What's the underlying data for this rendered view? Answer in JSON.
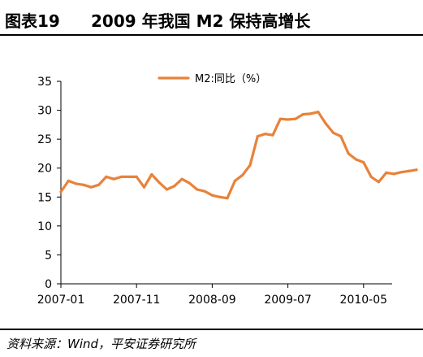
{
  "figure": {
    "label": "图表19",
    "title": "2009 年我国 M2 保持高增长",
    "source": "资料来源：Wind，平安证券研究所"
  },
  "chart_data": {
    "type": "line",
    "title": "",
    "xlabel": "",
    "ylabel": "",
    "ylim": [
      0,
      35
    ],
    "y_ticks": [
      0,
      5,
      10,
      15,
      20,
      25,
      30,
      35
    ],
    "grid": false,
    "legend_position": "top-center",
    "x": [
      "2007-01",
      "2007-02",
      "2007-03",
      "2007-04",
      "2007-05",
      "2007-06",
      "2007-07",
      "2007-08",
      "2007-09",
      "2007-10",
      "2007-11",
      "2007-12",
      "2008-01",
      "2008-02",
      "2008-03",
      "2008-04",
      "2008-05",
      "2008-06",
      "2008-07",
      "2008-08",
      "2008-09",
      "2008-10",
      "2008-11",
      "2008-12",
      "2009-01",
      "2009-02",
      "2009-03",
      "2009-04",
      "2009-05",
      "2009-06",
      "2009-07",
      "2009-08",
      "2009-09",
      "2009-10",
      "2009-11",
      "2009-12",
      "2010-01",
      "2010-02",
      "2010-03",
      "2010-04",
      "2010-05",
      "2010-06",
      "2010-07",
      "2010-08",
      "2010-09",
      "2010-10",
      "2010-11",
      "2010-12"
    ],
    "x_tick_labels": [
      "2007-01",
      "2007-11",
      "2008-09",
      "2009-07",
      "2010-05"
    ],
    "series": [
      {
        "name": "M2:同比（%）",
        "color": "#E8823A",
        "values": [
          15.9,
          17.8,
          17.3,
          17.1,
          16.7,
          17.1,
          18.5,
          18.1,
          18.5,
          18.5,
          18.5,
          16.7,
          18.9,
          17.5,
          16.3,
          16.9,
          18.1,
          17.4,
          16.3,
          16.0,
          15.3,
          15.0,
          14.8,
          17.8,
          18.8,
          20.5,
          25.5,
          25.9,
          25.7,
          28.5,
          28.4,
          28.5,
          29.3,
          29.4,
          29.7,
          27.7,
          26.1,
          25.5,
          22.5,
          21.5,
          21.0,
          18.5,
          17.6,
          19.2,
          19.0,
          19.3,
          19.5,
          19.7
        ]
      }
    ]
  }
}
